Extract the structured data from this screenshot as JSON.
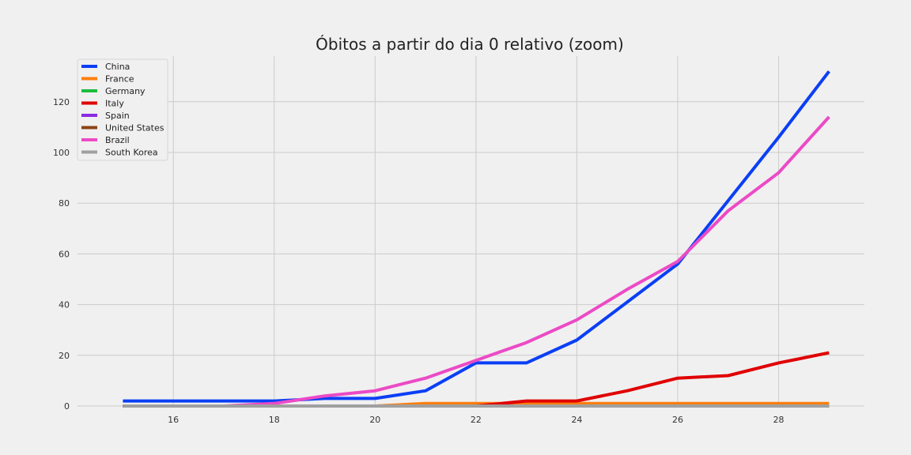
{
  "chart_data": {
    "type": "line",
    "title": "Óbitos a partir do dia 0 relativo (zoom)",
    "xlabel": "",
    "ylabel": "",
    "xlim": [
      14.1,
      29.7
    ],
    "ylim": [
      0,
      138
    ],
    "xticks": [
      16,
      18,
      20,
      22,
      24,
      26,
      28
    ],
    "yticks": [
      0,
      20,
      40,
      60,
      80,
      100,
      120
    ],
    "grid": true,
    "legend_position": "top-left",
    "x": [
      15,
      16,
      17,
      18,
      19,
      20,
      21,
      22,
      23,
      24,
      25,
      26,
      27,
      28,
      29
    ],
    "series": [
      {
        "name": "China",
        "color": "#0b3ff5",
        "values": [
          2,
          2,
          2,
          2,
          3,
          3,
          6,
          17,
          17,
          26,
          41,
          56,
          81,
          106,
          132
        ]
      },
      {
        "name": "France",
        "color": "#ff7f0e",
        "values": [
          0,
          0,
          0,
          0,
          0,
          0,
          1,
          1,
          1,
          1,
          1,
          1,
          1,
          1,
          1
        ]
      },
      {
        "name": "Germany",
        "color": "#1cbe3c",
        "values": [
          0,
          0,
          0,
          0,
          0,
          0,
          0,
          0,
          0,
          0,
          0,
          0,
          0,
          0,
          0
        ]
      },
      {
        "name": "Italy",
        "color": "#e00000",
        "values": [
          0,
          0,
          0,
          0,
          0,
          0,
          0,
          0,
          2,
          2,
          6,
          11,
          12,
          17,
          21
        ]
      },
      {
        "name": "Spain",
        "color": "#8a2be2",
        "values": [
          0,
          0,
          0,
          0,
          0,
          0,
          0,
          0,
          0,
          0,
          0,
          0,
          0,
          0,
          0
        ]
      },
      {
        "name": "United States",
        "color": "#8b4513",
        "values": [
          0,
          0,
          0,
          0,
          0,
          0,
          0,
          0,
          0,
          0,
          0,
          0,
          0,
          0,
          0
        ]
      },
      {
        "name": "Brazil",
        "color": "#ec4ac6",
        "values": [
          0,
          0,
          0,
          1,
          4,
          6,
          11,
          18,
          25,
          34,
          46,
          57,
          77,
          92,
          114
        ]
      },
      {
        "name": "South Korea",
        "color": "#a0a0a0",
        "values": [
          0,
          0,
          0,
          0,
          0,
          0,
          0,
          0,
          0,
          0,
          0,
          0,
          0,
          0,
          0
        ]
      }
    ]
  }
}
